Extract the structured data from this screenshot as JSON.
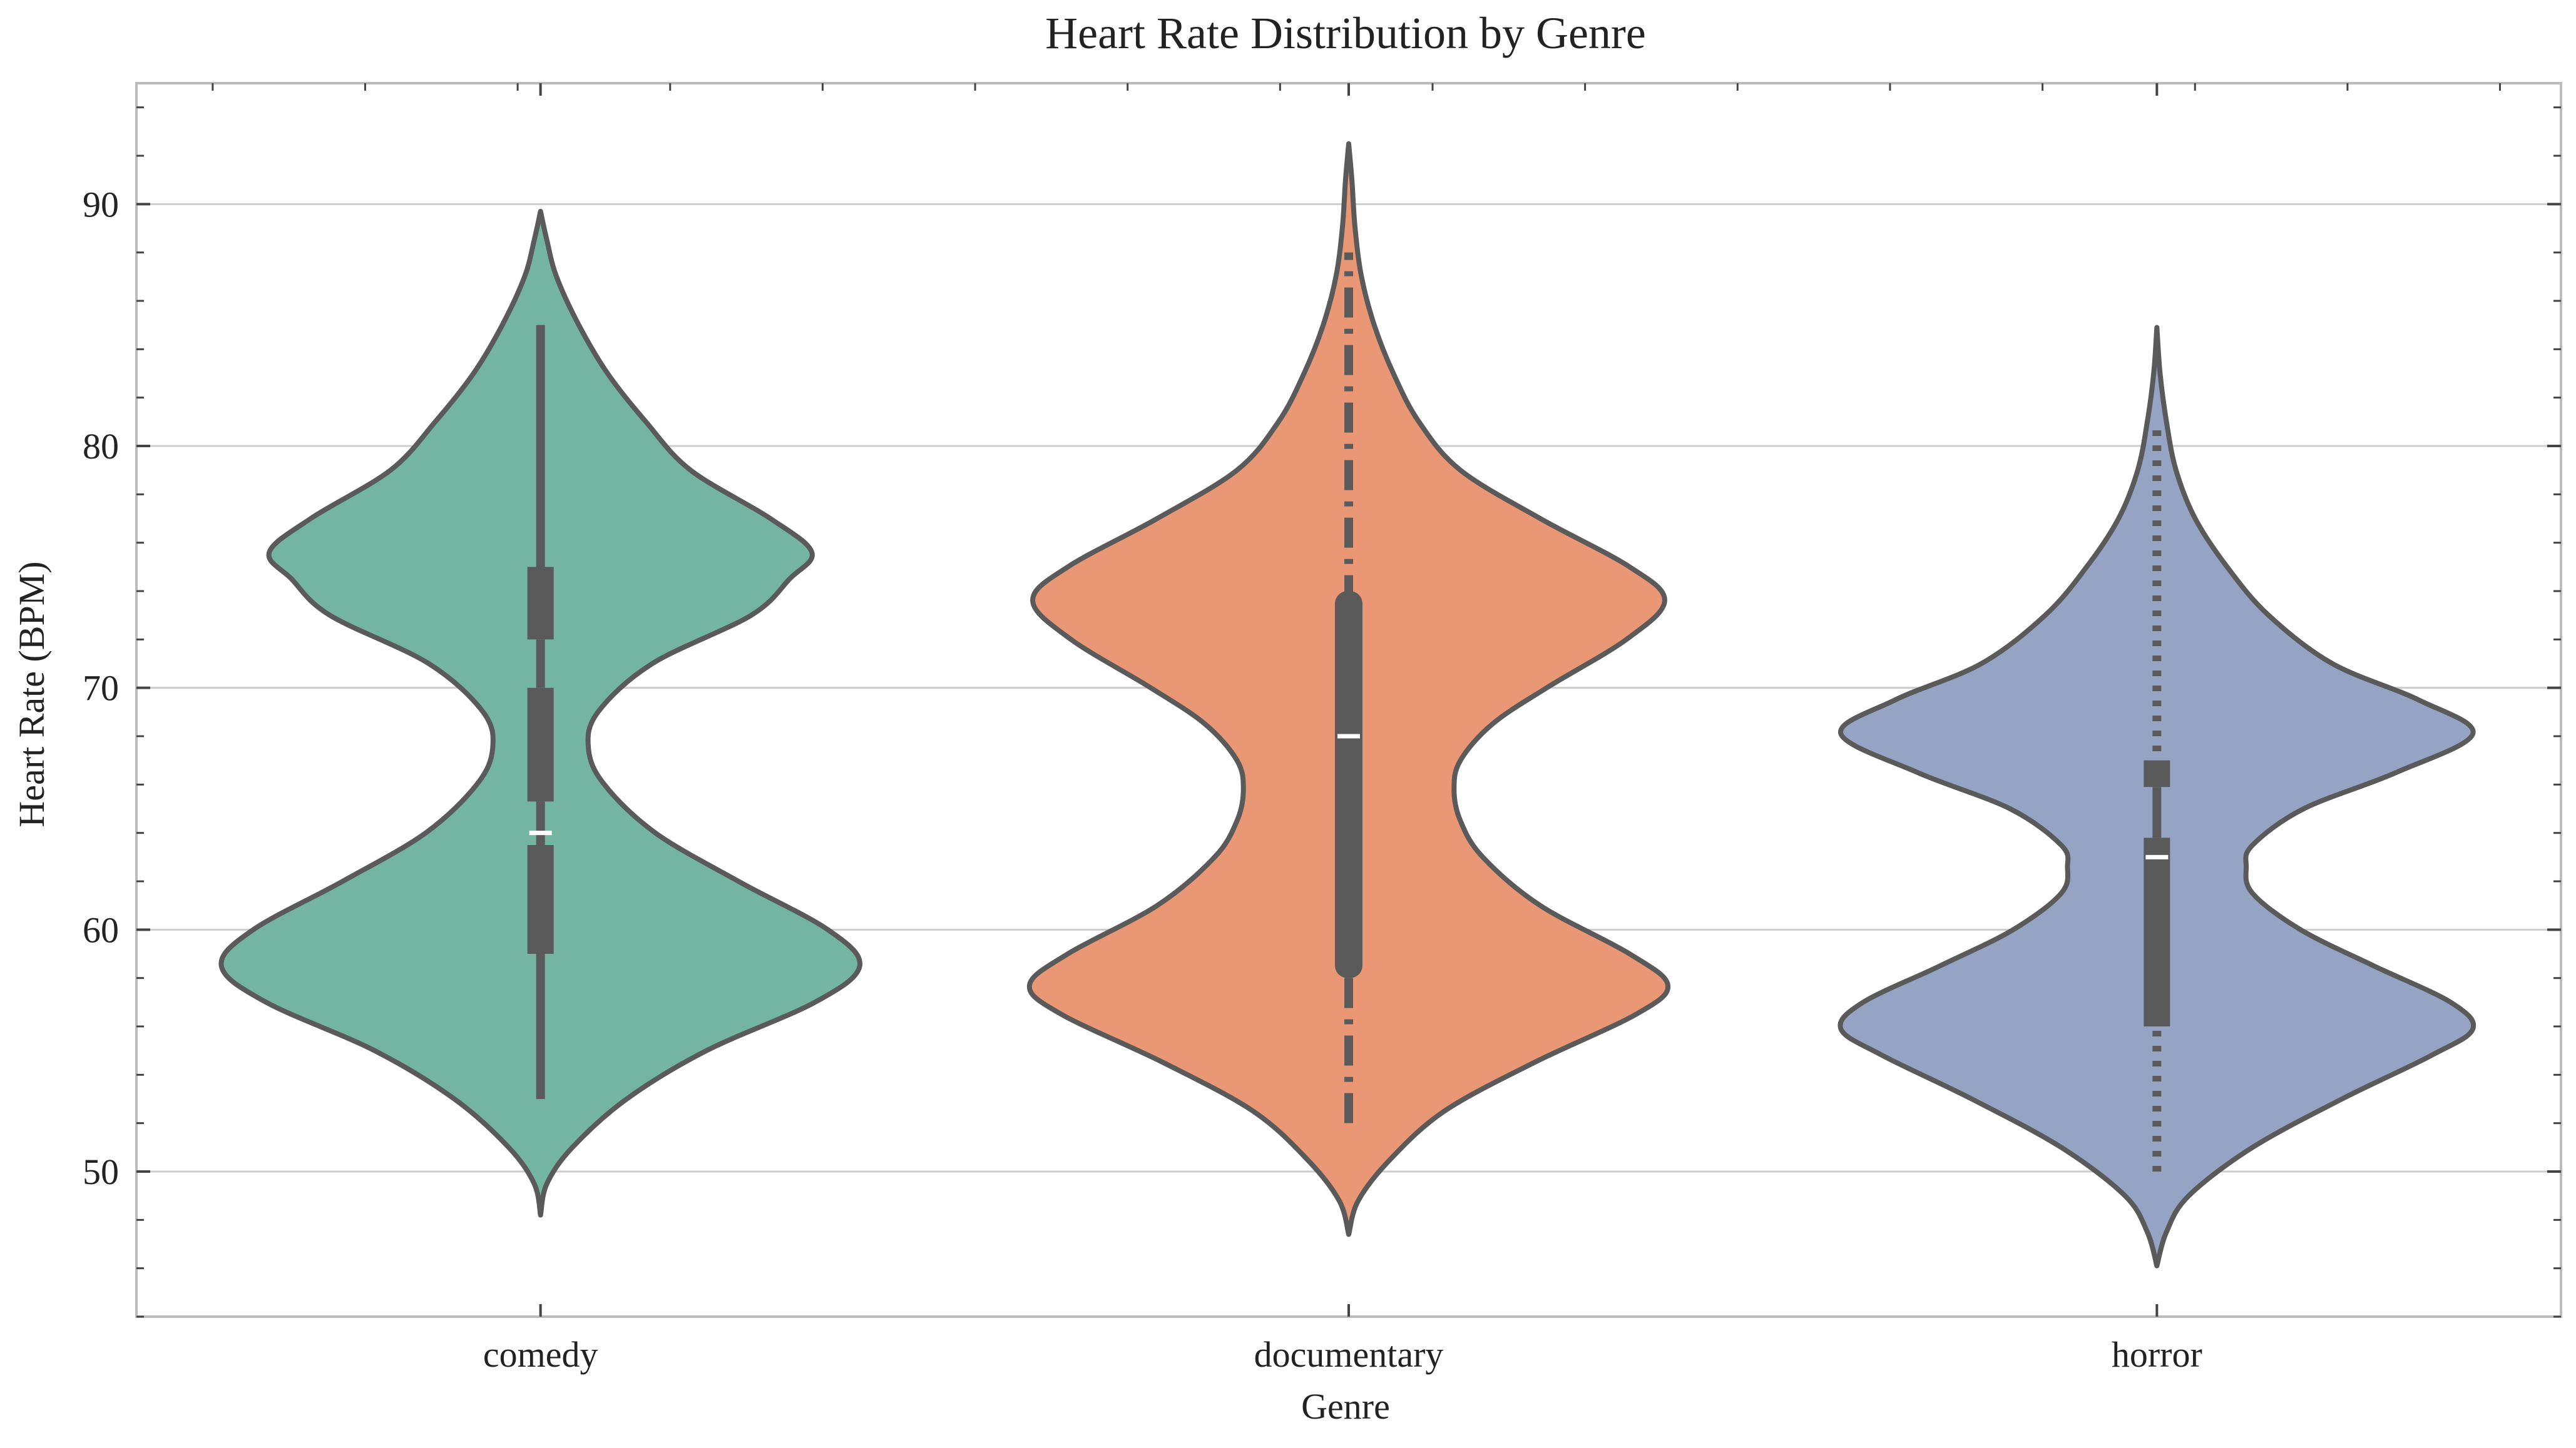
{
  "chart_data": {
    "type": "violin",
    "title": "Heart Rate Distribution by Genre",
    "xlabel": "Genre",
    "ylabel": "Heart Rate (BPM)",
    "ylim": [
      44,
      95
    ],
    "yticks": [
      50,
      60,
      70,
      80,
      90
    ],
    "grid": "horizontal",
    "categories": [
      "comedy",
      "documentary",
      "horror"
    ],
    "colors": {
      "comedy": "#74b5a2",
      "documentary": "#e99775",
      "horror": "#95a4c4",
      "outline": "#5a5a5a",
      "grid": "#cccccc",
      "median": "#ffffff"
    },
    "series": [
      {
        "category": "comedy",
        "min": 48.2,
        "max": 89.7,
        "whisker_low": 53,
        "whisker_high": 85,
        "q1": 59,
        "q3": 75,
        "median": 64,
        "gaps": [
          [
            63.5,
            65.3
          ],
          [
            70,
            72
          ]
        ],
        "line_style": "solid",
        "density_width": [
          [
            48.2,
            0.0
          ],
          [
            49.5,
            0.02
          ],
          [
            51,
            0.1
          ],
          [
            53,
            0.27
          ],
          [
            55,
            0.52
          ],
          [
            57,
            0.86
          ],
          [
            58.5,
            1.0
          ],
          [
            60,
            0.9
          ],
          [
            62,
            0.62
          ],
          [
            64,
            0.36
          ],
          [
            66,
            0.2
          ],
          [
            67.5,
            0.15
          ],
          [
            69,
            0.18
          ],
          [
            71,
            0.35
          ],
          [
            73,
            0.66
          ],
          [
            74.5,
            0.78
          ],
          [
            75.6,
            0.85
          ],
          [
            77,
            0.72
          ],
          [
            79,
            0.47
          ],
          [
            81,
            0.33
          ],
          [
            83,
            0.21
          ],
          [
            85,
            0.12
          ],
          [
            87,
            0.05
          ],
          [
            88.5,
            0.02
          ],
          [
            89.7,
            0.0
          ]
        ]
      },
      {
        "category": "documentary",
        "min": 47.4,
        "max": 92.5,
        "whisker_low": 52,
        "whisker_high": 88,
        "q1": 58,
        "q3": 74,
        "median": 68,
        "gaps": [],
        "line_style": "dashdot",
        "density_width": [
          [
            47.4,
            0.0
          ],
          [
            48.8,
            0.03
          ],
          [
            50.5,
            0.13
          ],
          [
            52.5,
            0.3
          ],
          [
            54.5,
            0.58
          ],
          [
            56.5,
            0.9
          ],
          [
            57.7,
            1.0
          ],
          [
            59,
            0.88
          ],
          [
            61,
            0.6
          ],
          [
            63,
            0.42
          ],
          [
            64.5,
            0.35
          ],
          [
            65.8,
            0.33
          ],
          [
            67,
            0.35
          ],
          [
            68.5,
            0.45
          ],
          [
            70,
            0.62
          ],
          [
            72,
            0.87
          ],
          [
            73.6,
            0.99
          ],
          [
            75,
            0.88
          ],
          [
            77,
            0.6
          ],
          [
            79,
            0.35
          ],
          [
            81,
            0.22
          ],
          [
            83,
            0.14
          ],
          [
            85,
            0.08
          ],
          [
            87,
            0.04
          ],
          [
            89,
            0.02
          ],
          [
            91,
            0.01
          ],
          [
            92.5,
            0.0
          ]
        ]
      },
      {
        "category": "horror",
        "min": 46.1,
        "max": 84.9,
        "whisker_low": 50,
        "whisker_high": 81,
        "q1": 56,
        "q3": 67,
        "median": 63,
        "gaps": [
          [
            63.8,
            65.9
          ]
        ],
        "line_style": "dotted",
        "density_width": [
          [
            46.1,
            0.0
          ],
          [
            47.5,
            0.03
          ],
          [
            49,
            0.1
          ],
          [
            51,
            0.3
          ],
          [
            53,
            0.58
          ],
          [
            54.8,
            0.86
          ],
          [
            55.9,
            0.99
          ],
          [
            57,
            0.92
          ],
          [
            58.5,
            0.68
          ],
          [
            60,
            0.45
          ],
          [
            61.5,
            0.3
          ],
          [
            62.6,
            0.28
          ],
          [
            63.5,
            0.3
          ],
          [
            65,
            0.46
          ],
          [
            66.5,
            0.75
          ],
          [
            68.1,
            0.99
          ],
          [
            69.5,
            0.82
          ],
          [
            71,
            0.55
          ],
          [
            73,
            0.35
          ],
          [
            75,
            0.22
          ],
          [
            77,
            0.12
          ],
          [
            79,
            0.06
          ],
          [
            81,
            0.03
          ],
          [
            83,
            0.01
          ],
          [
            84.9,
            0.0
          ]
        ]
      }
    ]
  }
}
